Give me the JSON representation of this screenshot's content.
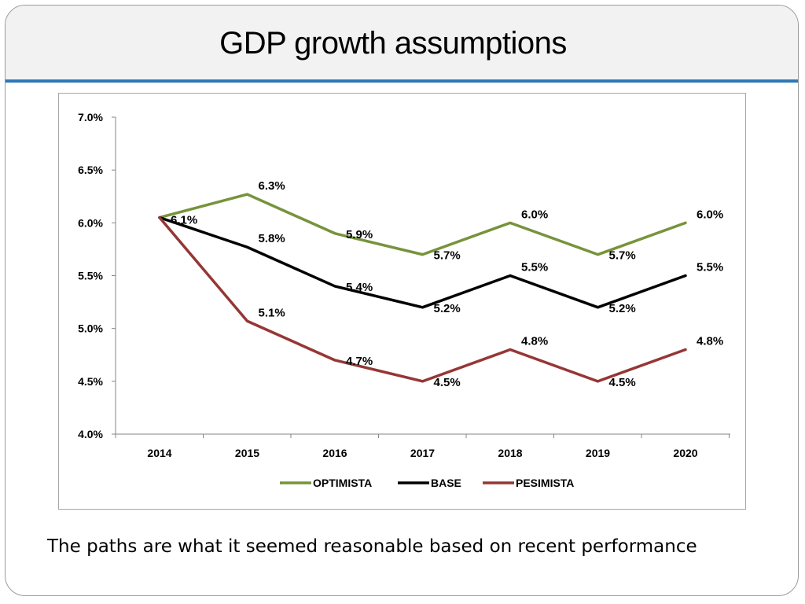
{
  "slide": {
    "title": "GDP growth assumptions",
    "caption": "The paths are what it seemed reasonable based on recent performance"
  },
  "colors": {
    "title_rule": "#2e78b5",
    "optimista": "#77933c",
    "base": "#000000",
    "pesimista": "#953735"
  },
  "chart_data": {
    "type": "line",
    "title": "",
    "xlabel": "",
    "ylabel": "",
    "categories": [
      "2014",
      "2015",
      "2016",
      "2017",
      "2018",
      "2019",
      "2020"
    ],
    "ylim": [
      4.0,
      7.0
    ],
    "y_ticks": [
      4.0,
      4.5,
      5.0,
      5.5,
      6.0,
      6.5,
      7.0
    ],
    "y_tick_labels": [
      "4.0%",
      "4.5%",
      "5.0%",
      "5.5%",
      "6.0%",
      "6.5%",
      "7.0%"
    ],
    "grid": false,
    "legend_position": "bottom",
    "series": [
      {
        "name": "OPTIMISTA",
        "color": "#77933c",
        "values": [
          6.05,
          6.27,
          5.9,
          5.7,
          6.0,
          5.7,
          6.0
        ],
        "labels": [
          "",
          "6.3%",
          "5.9%",
          "5.7%",
          "6.0%",
          "5.7%",
          "6.0%"
        ]
      },
      {
        "name": "BASE",
        "color": "#000000",
        "values": [
          6.05,
          5.77,
          5.4,
          5.2,
          5.5,
          5.2,
          5.5
        ],
        "labels": [
          "6.1%",
          "5.8%",
          "5.4%",
          "5.2%",
          "5.5%",
          "5.2%",
          "5.5%"
        ]
      },
      {
        "name": "PESIMISTA",
        "color": "#953735",
        "values": [
          6.05,
          5.07,
          4.7,
          4.5,
          4.8,
          4.5,
          4.8
        ],
        "labels": [
          "",
          "5.1%",
          "4.7%",
          "4.5%",
          "4.8%",
          "4.5%",
          "4.8%"
        ]
      }
    ]
  }
}
